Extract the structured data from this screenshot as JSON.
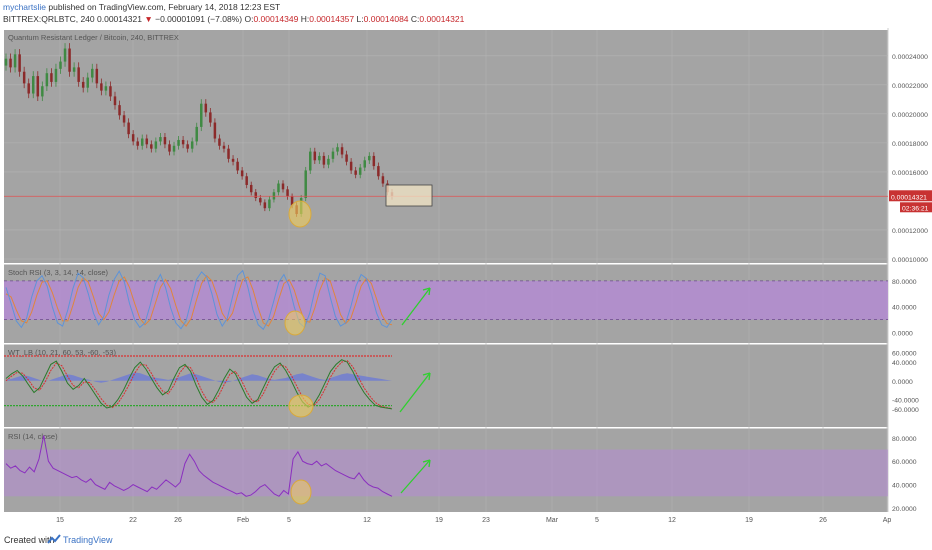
{
  "header": {
    "author": "mychartslie",
    "published_text": "published on TradingView.com, February 14, 2018 12:23 EST",
    "symbol": "BITTREX:QRLBTC, 240",
    "last": "0.00014321",
    "change_arrow": "▼",
    "change": "−0.00001091 (−7.08%)",
    "o_label": "O:",
    "o_value": "0.00014349",
    "h_label": "H:",
    "h_value": "0.00014357",
    "l_label": "L:",
    "l_value": "0.00014084",
    "c_label": "C:",
    "c_value": "0.00014321"
  },
  "footer": {
    "created_with": "Created with",
    "brand": "TradingView",
    "brand_icon": "tradingview-logo-icon"
  },
  "colors": {
    "pane_bg": "#a4a4a4",
    "scale_bg": "#ffffff",
    "up": "#3f8a43",
    "down": "#8b2a2a",
    "purple_band": "#b48ad4",
    "stoch_k": "#5e93d8",
    "stoch_d": "#e0853c",
    "wt_red": "#d93030",
    "wt_green": "#2fa62f",
    "rsi_line": "#8a2fbf",
    "highlight": "#f2cf5c",
    "arrow": "#2fd02f",
    "last_price": "#e05050"
  },
  "chart_data": [
    {
      "type": "candlestick",
      "title": "Quantum Resistant Ledger / Bitcoin, 240, BITTREX",
      "ylim": [
        0.0001,
        0.000255
      ],
      "y_ticks": [
        "0.00024000",
        "0.00022000",
        "0.00020000",
        "0.00018000",
        "0.00016000",
        "0.00014321",
        "0.00012000",
        "0.00010000"
      ],
      "last_price": 0.00014321,
      "countdown": "02:36:21",
      "close_series": [
        0.000238,
        0.000232,
        0.000241,
        0.000229,
        0.000221,
        0.000214,
        0.000226,
        0.000212,
        0.000219,
        0.000228,
        0.000222,
        0.000231,
        0.000236,
        0.000245,
        0.000229,
        0.000232,
        0.000222,
        0.000218,
        0.000225,
        0.000231,
        0.000221,
        0.000216,
        0.000219,
        0.000212,
        0.000206,
        0.000199,
        0.000194,
        0.000186,
        0.000181,
        0.000178,
        0.000183,
        0.000179,
        0.000176,
        0.000181,
        0.000184,
        0.000179,
        0.000174,
        0.000178,
        0.000182,
        0.000179,
        0.000176,
        0.000181,
        0.000191,
        0.000207,
        0.000201,
        0.000194,
        0.000183,
        0.000178,
        0.000176,
        0.000169,
        0.000167,
        0.000161,
        0.000157,
        0.000151,
        0.000146,
        0.000142,
        0.000139,
        0.000135,
        0.000141,
        0.000146,
        0.000152,
        0.000148,
        0.000143,
        0.000137,
        0.000131,
        0.000142,
        0.000161,
        0.000174,
        0.000168,
        0.000171,
        0.000165,
        0.000169,
        0.000174,
        0.000177,
        0.000172,
        0.000167,
        0.000161,
        0.000158,
        0.000163,
        0.000168,
        0.000171,
        0.000164,
        0.000157,
        0.000152,
        0.000146,
        0.000143
      ]
    },
    {
      "type": "line",
      "title": "Stoch RSI (3, 3, 14, 14, close)",
      "ylim": [
        -10,
        100
      ],
      "y_ticks": [
        "80.0000",
        "40.0000",
        "0.0000"
      ],
      "band": [
        20,
        80
      ],
      "series": [
        {
          "name": "K",
          "values": [
            70,
            45,
            18,
            8,
            22,
            55,
            80,
            88,
            72,
            40,
            15,
            10,
            35,
            68,
            92,
            85,
            60,
            30,
            12,
            25,
            58,
            82,
            95,
            78,
            45,
            20,
            8,
            15,
            42,
            75,
            90,
            70,
            38,
            15,
            6,
            18,
            50,
            82,
            94,
            86,
            60,
            28,
            10,
            22,
            55,
            88,
            96,
            70,
            35,
            12,
            5,
            20,
            48,
            78,
            90,
            72,
            40,
            15,
            8,
            30,
            65,
            92,
            88,
            55,
            25,
            10,
            15,
            40,
            72,
            90,
            84,
            60,
            30,
            12,
            8,
            20
          ]
        },
        {
          "name": "D",
          "values": [
            60,
            55,
            35,
            18,
            15,
            32,
            58,
            78,
            80,
            62,
            38,
            18,
            18,
            42,
            70,
            85,
            78,
            55,
            30,
            20,
            32,
            58,
            80,
            86,
            70,
            45,
            22,
            12,
            20,
            45,
            70,
            82,
            68,
            42,
            18,
            10,
            22,
            50,
            76,
            88,
            80,
            58,
            30,
            18,
            30,
            58,
            82,
            86,
            66,
            38,
            15,
            10,
            25,
            52,
            76,
            82,
            66,
            40,
            18,
            16,
            38,
            66,
            85,
            80,
            55,
            28,
            14,
            22,
            46,
            72,
            84,
            76,
            52,
            28,
            14,
            12
          ]
        }
      ]
    },
    {
      "type": "line",
      "title": "WT_LB (10, 21, 60, 53, -60, -53)",
      "ylim": [
        -90,
        70
      ],
      "y_ticks": [
        "60.0000",
        "40.0000",
        "0.0000",
        "-40.0000",
        "-60.0000"
      ],
      "overbought": 53,
      "oversold": -53,
      "series": [
        {
          "name": "WT1",
          "values": [
            5,
            15,
            22,
            10,
            -8,
            -25,
            -15,
            10,
            35,
            42,
            20,
            -5,
            -18,
            -10,
            5,
            -12,
            -30,
            -48,
            -58,
            -55,
            -40,
            -20,
            5,
            28,
            40,
            25,
            5,
            -15,
            -30,
            -22,
            5,
            28,
            35,
            20,
            -10,
            -35,
            -50,
            -42,
            -20,
            5,
            25,
            15,
            -10,
            -35,
            -48,
            -40,
            -15,
            10,
            30,
            38,
            22,
            0,
            -25,
            -45,
            -56,
            -50,
            -30,
            -5,
            20,
            35,
            45,
            40,
            20,
            -5,
            -25,
            -40,
            -52,
            -56,
            -58,
            -60
          ]
        },
        {
          "name": "WT2",
          "values": [
            0,
            10,
            18,
            16,
            2,
            -15,
            -20,
            -2,
            22,
            38,
            32,
            10,
            -10,
            -15,
            -2,
            -4,
            -20,
            -38,
            -52,
            -57,
            -48,
            -30,
            -8,
            16,
            34,
            34,
            16,
            -5,
            -22,
            -28,
            -10,
            16,
            31,
            28,
            6,
            -22,
            -42,
            -46,
            -32,
            -8,
            14,
            20,
            3,
            -22,
            -42,
            -45,
            -28,
            -2,
            20,
            34,
            30,
            12,
            -12,
            -35,
            -50,
            -53,
            -40,
            -18,
            8,
            27,
            40,
            43,
            30,
            8,
            -15,
            -32,
            -46,
            -54,
            -57,
            -59
          ]
        },
        {
          "name": "Histogram",
          "values": [
            2,
            4,
            8,
            12,
            10,
            6,
            2,
            -2,
            2,
            6,
            10,
            14,
            12,
            8,
            4,
            2,
            -2,
            -4,
            -2,
            2,
            6,
            10,
            14,
            18,
            16,
            12,
            8,
            6,
            4,
            2,
            4,
            8,
            12,
            16,
            14,
            10,
            6,
            2,
            -2,
            -4,
            -2,
            2,
            6,
            10,
            14,
            12,
            8,
            4,
            2,
            4,
            6,
            10,
            14,
            16,
            12,
            8,
            4,
            2,
            6,
            10,
            14,
            16,
            14,
            12,
            10,
            8,
            6,
            4,
            2,
            0
          ]
        }
      ]
    },
    {
      "type": "line",
      "title": "RSI (14, close)",
      "ylim": [
        20,
        85
      ],
      "y_ticks": [
        "80.0000",
        "60.0000",
        "40.0000",
        "20.0000"
      ],
      "band": [
        30,
        70
      ],
      "series": [
        {
          "name": "RSI",
          "values": [
            58,
            54,
            56,
            52,
            50,
            55,
            51,
            62,
            82,
            60,
            54,
            52,
            50,
            48,
            46,
            47,
            44,
            42,
            45,
            40,
            38,
            36,
            42,
            39,
            37,
            35,
            37,
            40,
            38,
            36,
            34,
            38,
            36,
            40,
            44,
            41,
            38,
            42,
            58,
            66,
            60,
            52,
            48,
            45,
            42,
            40,
            38,
            36,
            34,
            32,
            33,
            30,
            31,
            34,
            38,
            40,
            36,
            32,
            30,
            35,
            32,
            62,
            68,
            60,
            58,
            57,
            60,
            56,
            58,
            55,
            52,
            50,
            48,
            46,
            45,
            50,
            44,
            40,
            38,
            37,
            34,
            32,
            30
          ]
        }
      ]
    }
  ],
  "annotations": {
    "price_box": "price-target-box",
    "arrows": [
      "stoch-arrow-up",
      "wt-arrow-up",
      "rsi-arrow-up"
    ]
  },
  "x_axis": {
    "ticks": [
      "15",
      "22",
      "26",
      "Feb",
      "5",
      "12",
      "19",
      "23",
      "Mar",
      "5",
      "12",
      "19",
      "26",
      "Ap"
    ]
  }
}
